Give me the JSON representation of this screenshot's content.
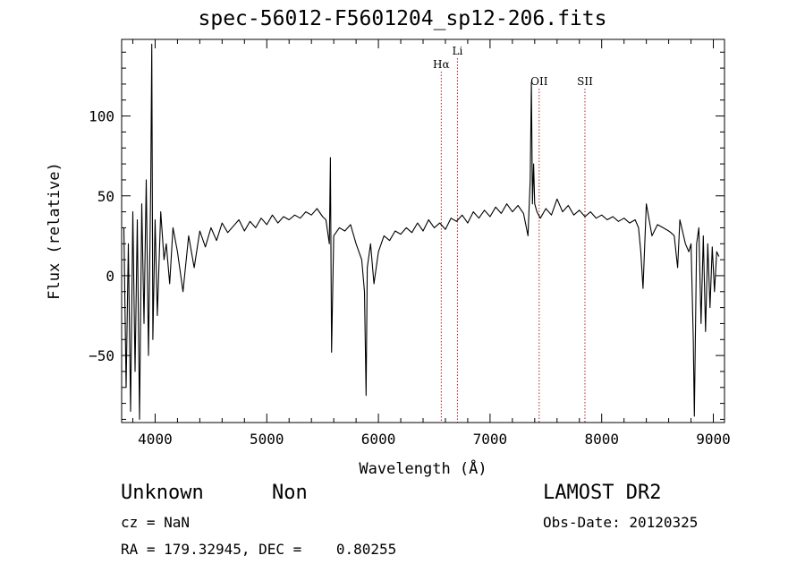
{
  "chart_data": {
    "type": "line",
    "title": "spec-56012-F5601204_sp12-206.fits",
    "xlabel": "Wavelength (Å)",
    "ylabel": "Flux (relative)",
    "xlim": [
      3700,
      9100
    ],
    "ylim": [
      -92,
      148
    ],
    "xticks": [
      4000,
      5000,
      6000,
      7000,
      8000,
      9000
    ],
    "yticks": [
      -50,
      0,
      50,
      100
    ],
    "series": [
      {
        "color": "#000000",
        "x": [
          3720,
          3740,
          3760,
          3780,
          3800,
          3820,
          3840,
          3860,
          3880,
          3900,
          3920,
          3940,
          3960,
          3970,
          3980,
          4000,
          4020,
          4050,
          4080,
          4100,
          4130,
          4160,
          4200,
          4250,
          4300,
          4350,
          4400,
          4450,
          4500,
          4550,
          4600,
          4650,
          4700,
          4750,
          4800,
          4850,
          4900,
          4950,
          5000,
          5050,
          5100,
          5150,
          5200,
          5250,
          5300,
          5350,
          5400,
          5450,
          5500,
          5530,
          5560,
          5570,
          5580,
          5600,
          5650,
          5700,
          5750,
          5800,
          5850,
          5875,
          5890,
          5900,
          5930,
          5960,
          6000,
          6050,
          6100,
          6150,
          6200,
          6250,
          6300,
          6350,
          6400,
          6450,
          6500,
          6550,
          6600,
          6650,
          6700,
          6750,
          6800,
          6850,
          6900,
          6950,
          7000,
          7050,
          7100,
          7150,
          7200,
          7250,
          7300,
          7340,
          7360,
          7370,
          7380,
          7390,
          7400,
          7420,
          7450,
          7500,
          7550,
          7600,
          7650,
          7700,
          7750,
          7800,
          7850,
          7900,
          7950,
          8000,
          8050,
          8100,
          8150,
          8200,
          8250,
          8300,
          8330,
          8350,
          8370,
          8400,
          8450,
          8500,
          8550,
          8600,
          8620,
          8650,
          8680,
          8700,
          8750,
          8780,
          8800,
          8820,
          8830,
          8850,
          8870,
          8890,
          8910,
          8930,
          8950,
          8970,
          8990,
          9010,
          9030,
          9050
        ],
        "y": [
          30,
          -70,
          20,
          -85,
          40,
          -60,
          35,
          -90,
          45,
          -30,
          60,
          -50,
          55,
          145,
          -40,
          35,
          -25,
          40,
          10,
          20,
          -5,
          30,
          15,
          -10,
          25,
          5,
          28,
          18,
          30,
          22,
          33,
          27,
          31,
          35,
          28,
          34,
          30,
          36,
          32,
          38,
          33,
          37,
          35,
          38,
          36,
          40,
          38,
          42,
          37,
          35,
          20,
          74,
          -48,
          25,
          30,
          28,
          32,
          20,
          10,
          -10,
          -75,
          5,
          20,
          -5,
          15,
          25,
          22,
          28,
          26,
          30,
          27,
          33,
          28,
          35,
          30,
          33,
          29,
          36,
          34,
          38,
          33,
          40,
          36,
          41,
          37,
          43,
          39,
          45,
          40,
          44,
          39,
          25,
          60,
          121,
          45,
          70,
          45,
          40,
          36,
          42,
          38,
          48,
          40,
          44,
          38,
          41,
          37,
          40,
          36,
          38,
          35,
          37,
          34,
          36,
          33,
          35,
          30,
          15,
          -8,
          45,
          25,
          32,
          30,
          28,
          27,
          25,
          5,
          35,
          20,
          15,
          20,
          -40,
          -88,
          20,
          30,
          -30,
          25,
          -35,
          20,
          -20,
          18,
          -10,
          15,
          12
        ]
      }
    ],
    "annotations": [
      {
        "label": "Hα",
        "x": 6563
      },
      {
        "label": "Li",
        "x": 6708
      },
      {
        "label": "OII",
        "x": 7440
      },
      {
        "label": "SII",
        "x": 7850
      }
    ]
  },
  "info": {
    "obj_class": "Unknown",
    "obj_subclass": "Non",
    "survey": "LAMOST DR2",
    "cz": "cz = NaN",
    "obs_date": "Obs-Date: 20120325",
    "radec": "RA = 179.32945, DEC =    0.80255"
  }
}
